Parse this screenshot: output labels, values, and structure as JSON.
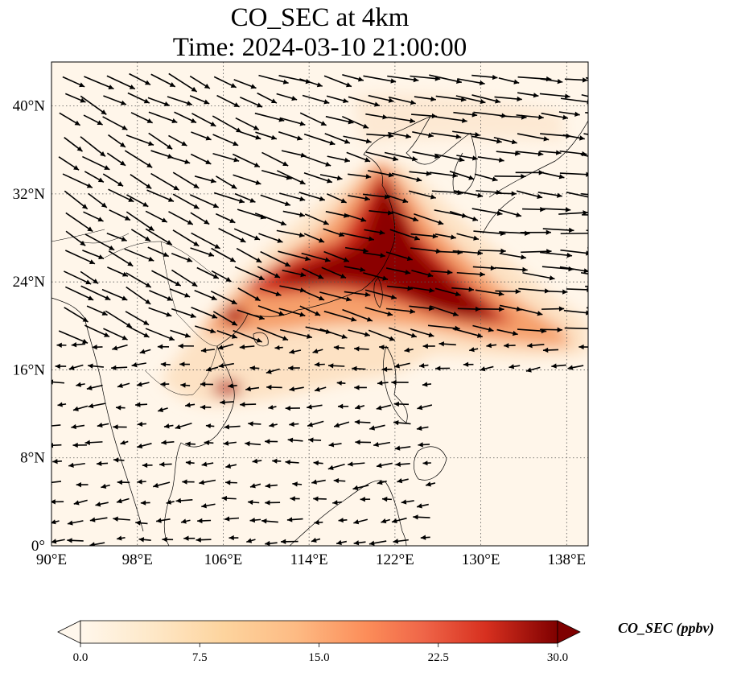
{
  "title_line1": "CO_SEC at 4km",
  "title_line2": "Time: 2024-03-10 21:00:00",
  "map": {
    "lon_range": [
      90,
      140
    ],
    "lat_range": [
      0,
      44
    ],
    "lon_ticks": [
      "90°E",
      "98°E",
      "106°E",
      "114°E",
      "122°E",
      "130°E",
      "138°E"
    ],
    "lat_ticks": [
      "0°",
      "8°N",
      "16°N",
      "24°N",
      "32°N",
      "40°N"
    ],
    "gridlines": true,
    "gridline_style": "dotted"
  },
  "colorbar": {
    "label": "CO_SEC (ppbv)",
    "tick_labels": [
      "0.0",
      "7.5",
      "15.0",
      "22.5",
      "30.0"
    ],
    "range": [
      0,
      30
    ],
    "colormap": "OrRd",
    "extend": "both",
    "colors": [
      "#fff7ec",
      "#fee8c8",
      "#fdd49e",
      "#fdbb84",
      "#fc8d59",
      "#ef6548",
      "#d7301f",
      "#b30000",
      "#7f0000"
    ]
  },
  "colors": {
    "land_line": "#000000",
    "grid": "#555555",
    "arrow": "#000000"
  }
}
